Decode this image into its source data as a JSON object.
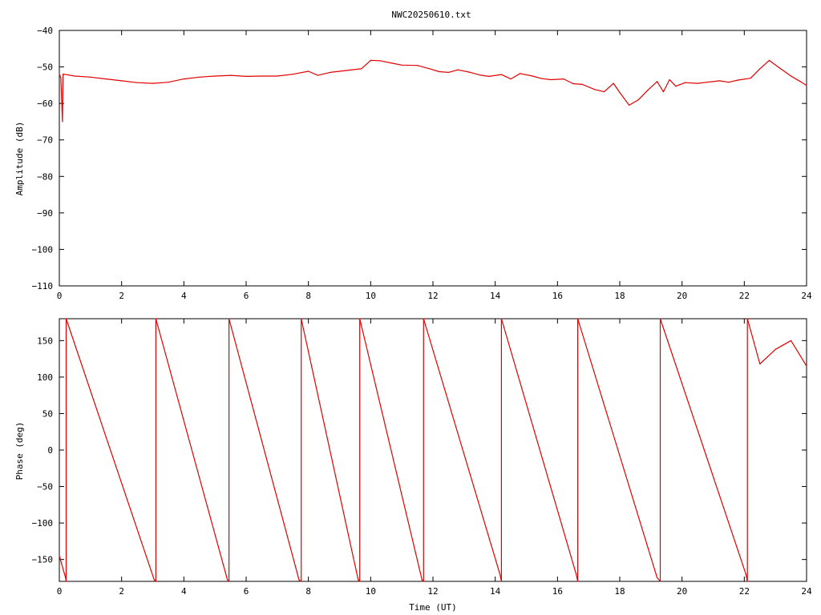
{
  "figure_title": "NWC20250610.txt",
  "chart_data": [
    {
      "type": "line",
      "title": "NWC20250610.txt",
      "xlabel": "",
      "ylabel": "Amplitude (dB)",
      "xlim": [
        0,
        24
      ],
      "ylim": [
        -110,
        -40
      ],
      "xticks": [
        0,
        2,
        4,
        6,
        8,
        10,
        12,
        14,
        16,
        18,
        20,
        22,
        24
      ],
      "yticks": [
        -110,
        -100,
        -90,
        -80,
        -70,
        -60,
        -50,
        -40
      ],
      "grid": false,
      "color": "#e00000",
      "series": [
        {
          "x": [
            0,
            0.05,
            0.1,
            0.12,
            0.15,
            0.5,
            1,
            1.5,
            2,
            2.5,
            3,
            3.5,
            4,
            4.5,
            5,
            5.5,
            6,
            6.5,
            7,
            7.5,
            8,
            8.3,
            8.7,
            9.2,
            9.7,
            10,
            10.3,
            10.7,
            11,
            11.5,
            11.9,
            12.2,
            12.5,
            12.8,
            13.2,
            13.5,
            13.8,
            14.2,
            14.5,
            14.8,
            15.2,
            15.5,
            15.8,
            16.2,
            16.5,
            16.8,
            17.2,
            17.5,
            17.8,
            18,
            18.3,
            18.6,
            18.9,
            19.2,
            19.4,
            19.6,
            19.8,
            20.1,
            20.5,
            20.8,
            21.2,
            21.5,
            21.8,
            22.2,
            22.5,
            22.8,
            23.1,
            23.5,
            23.8,
            24
          ],
          "y": [
            -52,
            -53,
            -65,
            -52,
            -52,
            -52.5,
            -52.8,
            -53.3,
            -53.8,
            -54.3,
            -54.5,
            -54.2,
            -53.3,
            -52.8,
            -52.5,
            -52.3,
            -52.6,
            -52.5,
            -52.5,
            -52,
            -51.2,
            -52.3,
            -51.5,
            -51,
            -50.5,
            -48.2,
            -48.3,
            -49,
            -49.5,
            -49.6,
            -50.5,
            -51.3,
            -51.5,
            -50.8,
            -51.5,
            -52.2,
            -52.6,
            -52.1,
            -53.3,
            -51.8,
            -52.5,
            -53.2,
            -53.5,
            -53.3,
            -54.6,
            -54.8,
            -56.2,
            -56.8,
            -54.5,
            -57,
            -60.5,
            -59,
            -56.4,
            -54,
            -56.8,
            -53.5,
            -55.3,
            -54.3,
            -54.5,
            -54.2,
            -53.8,
            -54.2,
            -53.6,
            -53.1,
            -50.5,
            -48.2,
            -50.1,
            -52.5,
            -54,
            -55.1
          ]
        }
      ]
    },
    {
      "type": "line",
      "title": "",
      "xlabel": "Time (UT)",
      "ylabel": "Phase (deg)",
      "xlim": [
        0,
        24
      ],
      "ylim": [
        -180,
        180
      ],
      "xticks": [
        0,
        2,
        4,
        6,
        8,
        10,
        12,
        14,
        16,
        18,
        20,
        22,
        24
      ],
      "yticks": [
        -150,
        -100,
        -50,
        0,
        50,
        100,
        150
      ],
      "grid": false,
      "color": "#e00000",
      "series": [
        {
          "x": [
            0,
            0.2,
            0.22,
            0.22,
            3.05,
            3.1,
            3.1,
            5.4,
            5.45,
            5.45,
            7.7,
            7.77,
            7.77,
            9.6,
            9.65,
            9.65,
            11.65,
            11.7,
            11.7,
            14.15,
            14.2,
            14.2,
            16.6,
            16.65,
            16.65,
            19.2,
            19.3,
            19.3,
            22.05,
            22.1,
            22.1,
            22.5,
            23,
            23.5,
            24
          ],
          "y": [
            -145,
            -175,
            -180,
            180,
            -178,
            -180,
            180,
            -178,
            -180,
            180,
            -178,
            -180,
            180,
            -178,
            -180,
            180,
            -178,
            -180,
            180,
            -170,
            -180,
            180,
            -170,
            -180,
            180,
            -175,
            -180,
            180,
            -170,
            -180,
            180,
            118,
            138,
            150,
            115
          ]
        }
      ]
    }
  ]
}
